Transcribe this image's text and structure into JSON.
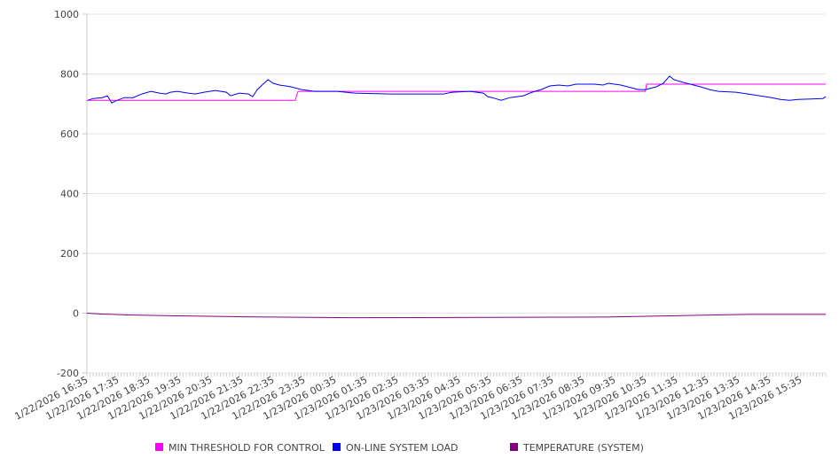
{
  "chart_data": {
    "type": "line",
    "title": "",
    "xlabel": "",
    "ylabel": "",
    "ylim": [
      -200,
      1000
    ],
    "yticks": [
      "1000",
      "800",
      "600",
      "400",
      "200",
      "0",
      "-200"
    ],
    "ytick_values": [
      1000,
      800,
      600,
      400,
      200,
      0,
      -200
    ],
    "grid": true,
    "legend_placement": "bottom",
    "x_unit": "hours since 1/22/2026 16:35",
    "xlim": [
      0,
      23.8
    ],
    "xtick_labels": [
      "1/22/2026 16:35",
      "1/22/2026 17:35",
      "1/22/2026 18:35",
      "1/22/2026 19:35",
      "1/22/2026 20:35",
      "1/22/2026 21:35",
      "1/22/2026 22:35",
      "1/22/2026 23:35",
      "1/23/2026 00:35",
      "1/23/2026 01:35",
      "1/23/2026 02:35",
      "1/23/2026 03:35",
      "1/23/2026 04:35",
      "1/23/2026 05:35",
      "1/23/2026 06:35",
      "1/23/2026 07:35",
      "1/23/2026 08:35",
      "1/23/2026 09:35",
      "1/23/2026 10:35",
      "1/23/2026 11:35",
      "1/23/2026 12:35",
      "1/23/2026 13:35",
      "1/23/2026 14:35",
      "1/23/2026 15:35"
    ],
    "series": [
      {
        "name": "MIN THRESHOLD FOR CONTROL",
        "color": "#ff00ff",
        "x": [
          0,
          6.71,
          6.8,
          17.99,
          18.03,
          23.8
        ],
        "y": [
          712,
          712,
          742,
          742,
          766,
          766
        ]
      },
      {
        "name": "ON-LINE SYSTEM LOAD",
        "color": "#0000ff",
        "x": [
          0.03,
          0.2,
          0.49,
          0.66,
          0.8,
          0.91,
          1.2,
          1.49,
          1.77,
          2.06,
          2.34,
          2.54,
          2.69,
          2.91,
          3.26,
          3.49,
          3.77,
          4.14,
          4.49,
          4.63,
          4.91,
          5.2,
          5.34,
          5.49,
          5.83,
          6.0,
          6.2,
          6.4,
          6.57,
          6.91,
          7.34,
          8.06,
          8.63,
          9.77,
          10.63,
          11.49,
          11.77,
          12.34,
          12.77,
          12.91,
          13.06,
          13.34,
          13.63,
          14.06,
          14.34,
          14.63,
          14.91,
          15.2,
          15.49,
          15.77,
          16.06,
          16.34,
          16.63,
          16.8,
          17.2,
          17.77,
          18.0,
          18.34,
          18.57,
          18.77,
          18.91,
          19.2,
          19.77,
          20.06,
          20.34,
          20.91,
          21.49,
          22.06,
          22.34,
          22.63,
          22.91,
          23.71,
          23.8
        ],
        "y": [
          712,
          718,
          721,
          727,
          703,
          709,
          721,
          721,
          733,
          742,
          736,
          733,
          739,
          742,
          736,
          733,
          739,
          745,
          739,
          727,
          736,
          733,
          724,
          748,
          781,
          769,
          763,
          760,
          757,
          748,
          742,
          742,
          736,
          733,
          733,
          733,
          739,
          742,
          736,
          724,
          721,
          712,
          721,
          727,
          739,
          748,
          760,
          763,
          760,
          766,
          766,
          766,
          763,
          769,
          763,
          748,
          748,
          757,
          769,
          793,
          781,
          772,
          757,
          748,
          742,
          739,
          730,
          721,
          715,
          712,
          715,
          718,
          724
        ]
      },
      {
        "name": "TEMPERATURE (SYSTEM)",
        "color": "#800080",
        "x": [
          0,
          0.49,
          1.34,
          2.91,
          5.06,
          8.63,
          16.77,
          18.2,
          19.63,
          21.34,
          23.8
        ],
        "y": [
          0,
          -3,
          -6,
          -9,
          -12,
          -15,
          -13,
          -10,
          -7,
          -4,
          -4
        ]
      }
    ]
  }
}
